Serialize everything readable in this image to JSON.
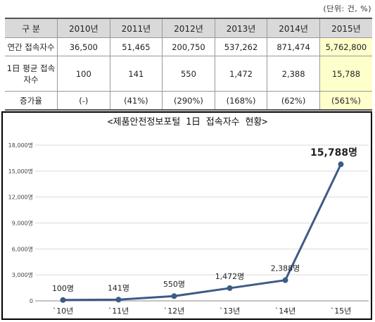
{
  "table": {
    "unit_label": "(단위: 건, %)",
    "headers": [
      "구 분",
      "2010년",
      "2011년",
      "2012년",
      "2013년",
      "2014년",
      "2015년"
    ],
    "rows": [
      {
        "label": "연간 접속자수",
        "values": [
          "36,500",
          "51,465",
          "200,750",
          "537,262",
          "871,474",
          "5,762,800"
        ]
      },
      {
        "label": "1日 평균 접속자수",
        "values": [
          "100",
          "141",
          "550",
          "1,472",
          "2,388",
          "15,788"
        ]
      },
      {
        "label": "증가율",
        "values": [
          "(-)",
          "(41%)",
          "(290%)",
          "(168%)",
          "(62%)",
          "(561%)"
        ]
      }
    ]
  },
  "chart_data": {
    "type": "line",
    "title": "<제품안전정보포털 1日 접속자수 현황>",
    "categories": [
      "`10년",
      "`11년",
      "`12년",
      "`13년",
      "`14년",
      "`15년"
    ],
    "series": [
      {
        "values": [
          100,
          141,
          550,
          1472,
          2388,
          15788
        ],
        "labels": [
          "100명",
          "141명",
          "550명",
          "1,472명",
          "2,388명",
          "15,788명"
        ]
      }
    ],
    "ylim": [
      0,
      18000
    ],
    "yticks": [
      0,
      3000,
      6000,
      9000,
      12000,
      15000,
      18000
    ],
    "ytick_labels": [
      "0",
      "3,000명",
      "6,000명",
      "9,000명",
      "12,000명",
      "15,000명",
      "18,000명"
    ],
    "grid": true,
    "line_color": "#3d5b87"
  }
}
